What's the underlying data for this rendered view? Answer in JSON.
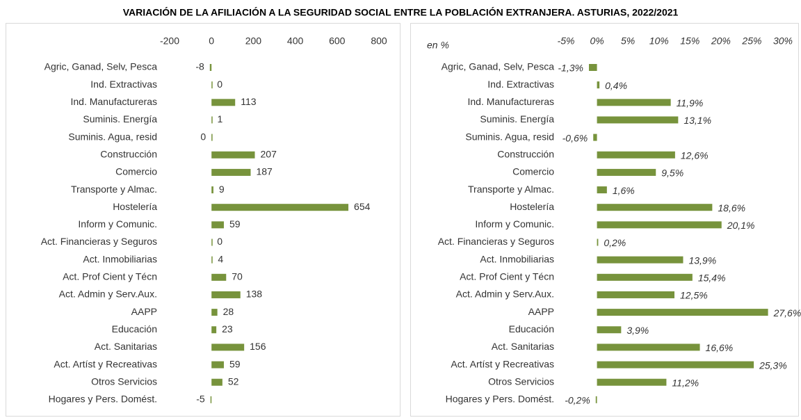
{
  "title": "VARIACIÓN DE LA AFILIACIÓN A LA SEGURIDAD SOCIAL ENTRE LA POBLACIÓN EXTRANJERA. ASTURIAS, 2022/2021",
  "chart_data": [
    {
      "type": "bar",
      "orientation": "horizontal",
      "color": "#77933c",
      "grid": false,
      "categories": [
        "Agric, Ganad, Selv, Pesca",
        "Ind. Extractivas",
        "Ind. Manufactureras",
        "Suminis. Energía",
        "Suminis. Agua, resid",
        "Construcción",
        "Comercio",
        "Transporte y Almac.",
        "Hostelería",
        "Inform y Comunic.",
        "Act. Financieras y Seguros",
        "Act. Inmobiliarias",
        "Act. Prof Cient y Técn",
        "Act. Admin y Serv.Aux.",
        "AAPP",
        "Educación",
        "Act. Sanitarias",
        "Act. Artíst y Recreativas",
        "Otros Servicios",
        "Hogares y Pers. Domést."
      ],
      "values": [
        -8,
        0,
        113,
        1,
        -0.3,
        207,
        187,
        9,
        654,
        59,
        0,
        4,
        70,
        138,
        28,
        23,
        156,
        59,
        52,
        -5
      ],
      "value_labels": [
        "-8",
        "0",
        "113",
        "1",
        "0",
        "207",
        "187",
        "9",
        "654",
        "59",
        "0",
        "4",
        "70",
        "138",
        "28",
        "23",
        "156",
        "59",
        "52",
        "-5"
      ],
      "xlim": [
        -200,
        800
      ],
      "xticks": [
        -200,
        0,
        200,
        400,
        600,
        800
      ]
    },
    {
      "type": "bar",
      "orientation": "horizontal",
      "color": "#77933c",
      "grid": false,
      "annotation": "en %",
      "categories": [
        "Agric, Ganad, Selv, Pesca",
        "Ind. Extractivas",
        "Ind. Manufactureras",
        "Suminis. Energía",
        "Suminis. Agua, resid",
        "Construcción",
        "Comercio",
        "Transporte y Almac.",
        "Hostelería",
        "Inform y Comunic.",
        "Act. Financieras y Seguros",
        "Act. Inmobiliarias",
        "Act. Prof Cient y Técn",
        "Act. Admin y Serv.Aux.",
        "AAPP",
        "Educación",
        "Act. Sanitarias",
        "Act. Artíst y Recreativas",
        "Otros Servicios",
        "Hogares y Pers. Domést."
      ],
      "values": [
        -1.3,
        0.4,
        11.9,
        13.1,
        -0.6,
        12.6,
        9.5,
        1.6,
        18.6,
        20.1,
        0.2,
        13.9,
        15.4,
        12.5,
        27.6,
        3.9,
        16.6,
        25.3,
        11.2,
        -0.2
      ],
      "value_labels": [
        "-1,3%",
        "0,4%",
        "11,9%",
        "13,1%",
        "-0,6%",
        "12,6%",
        "9,5%",
        "1,6%",
        "18,6%",
        "20,1%",
        "0,2%",
        "13,9%",
        "15,4%",
        "12,5%",
        "27,6%",
        "3,9%",
        "16,6%",
        "25,3%",
        "11,2%",
        "-0,2%"
      ],
      "xlim": [
        -5,
        30
      ],
      "xticks": [
        {
          "value": -5,
          "label": "-5%"
        },
        {
          "value": 0,
          "label": "0%"
        },
        {
          "value": 5,
          "label": "5%"
        },
        {
          "value": 10,
          "label": "10%"
        },
        {
          "value": 15,
          "label": "15%"
        },
        {
          "value": 20,
          "label": "20%"
        },
        {
          "value": 25,
          "label": "25%"
        },
        {
          "value": 30,
          "label": "30%"
        }
      ]
    }
  ]
}
